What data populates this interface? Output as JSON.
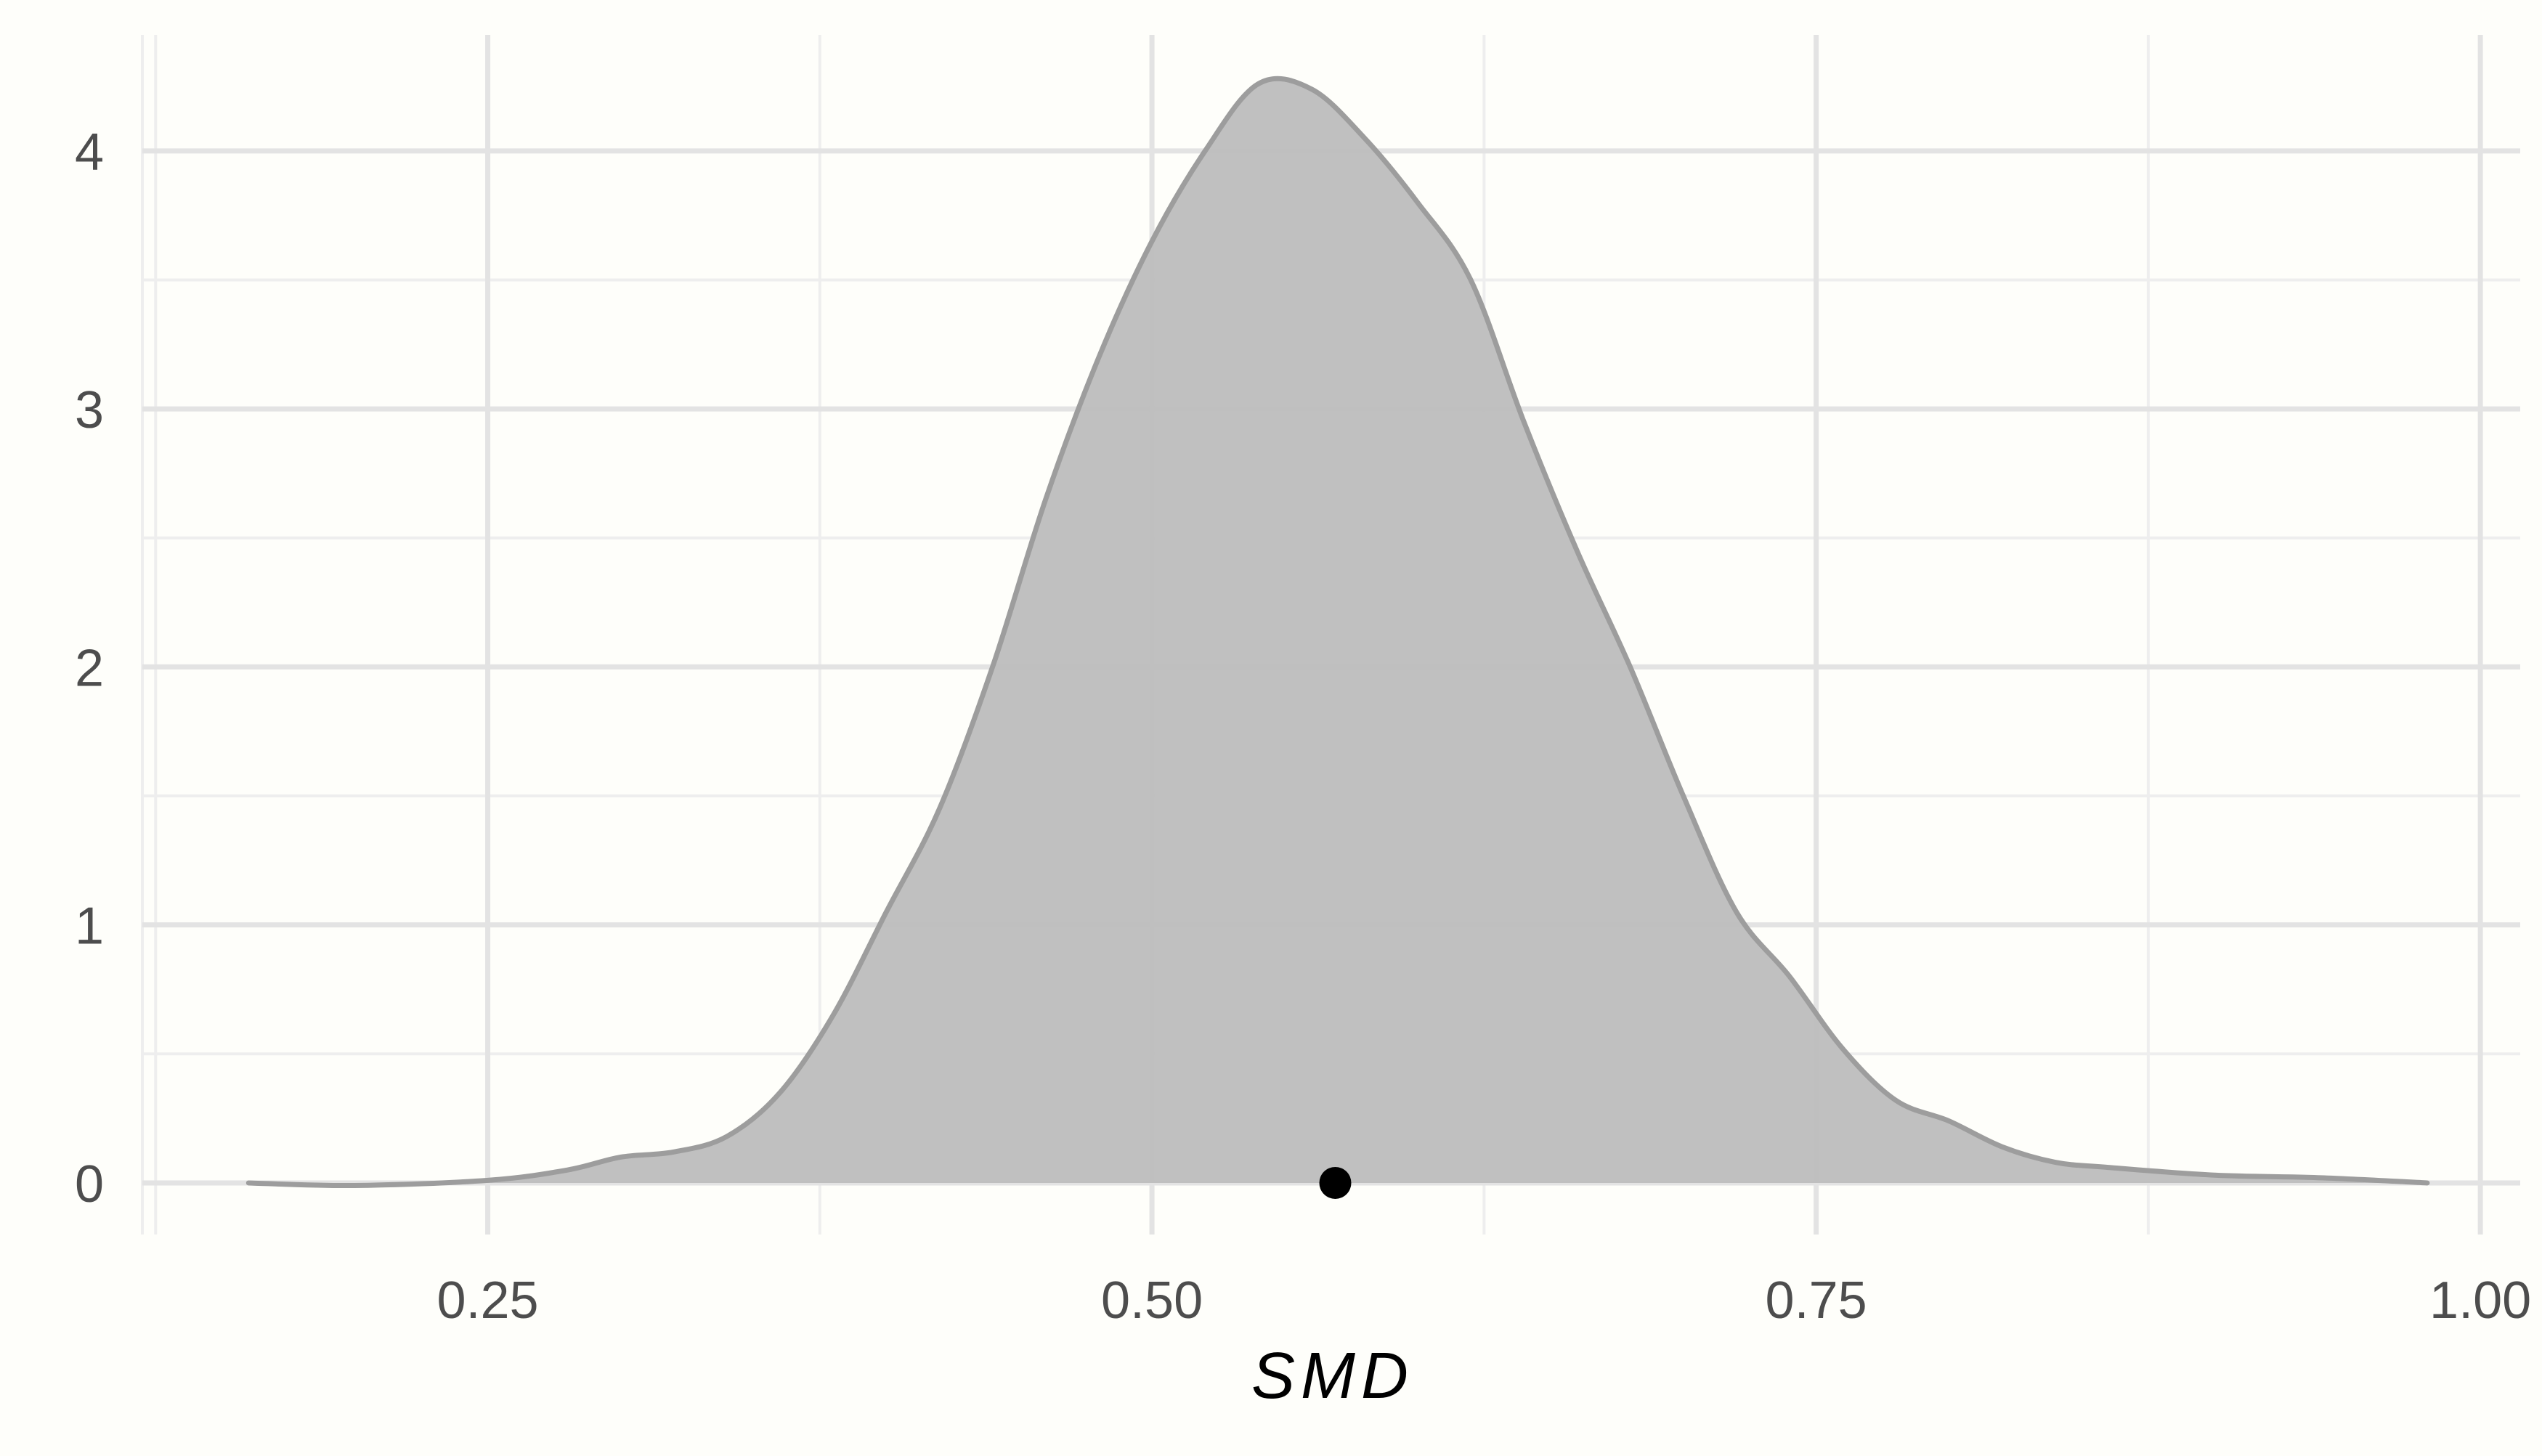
{
  "chart_data": {
    "type": "area",
    "title": "",
    "xlabel": "SMD",
    "ylabel": "",
    "xlim": [
      0.12,
      1.015
    ],
    "ylim": [
      -0.2,
      4.45
    ],
    "grid": true,
    "x_ticks": [
      {
        "value": 0.25,
        "label": "0.25"
      },
      {
        "value": 0.5,
        "label": "0.50"
      },
      {
        "value": 0.75,
        "label": "0.75"
      },
      {
        "value": 1.0,
        "label": "1.00"
      }
    ],
    "y_ticks": [
      {
        "value": 0,
        "label": "0"
      },
      {
        "value": 1,
        "label": "1"
      },
      {
        "value": 2,
        "label": "2"
      },
      {
        "value": 3,
        "label": "3"
      },
      {
        "value": 4,
        "label": "4"
      }
    ],
    "x_minor": [
      0.125,
      0.375,
      0.625,
      0.875
    ],
    "y_minor": [
      0.5,
      1.5,
      2.5,
      3.5
    ],
    "series": [
      {
        "x": [
          0.16,
          0.2,
          0.25,
          0.28,
          0.3,
          0.32,
          0.34,
          0.36,
          0.38,
          0.4,
          0.42,
          0.44,
          0.46,
          0.48,
          0.5,
          0.52,
          0.54,
          0.56,
          0.58,
          0.6,
          0.62,
          0.64,
          0.66,
          0.68,
          0.7,
          0.72,
          0.74,
          0.76,
          0.78,
          0.8,
          0.82,
          0.84,
          0.86,
          0.9,
          0.94,
          0.98
        ],
        "y": [
          0.0,
          -0.01,
          0.01,
          0.05,
          0.1,
          0.12,
          0.18,
          0.35,
          0.65,
          1.05,
          1.45,
          2.0,
          2.65,
          3.2,
          3.65,
          4.0,
          4.26,
          4.24,
          4.05,
          3.8,
          3.5,
          2.95,
          2.45,
          2.0,
          1.5,
          1.05,
          0.8,
          0.52,
          0.32,
          0.24,
          0.14,
          0.08,
          0.06,
          0.03,
          0.02,
          0.0
        ]
      }
    ],
    "point_estimate": {
      "x": 0.569,
      "y": 0
    },
    "colors": {
      "background": "#fefefa",
      "grid_major": "#e3e3e3",
      "grid_minor": "#eeeeee",
      "fill": "#bdbdbd",
      "line": "#9d9d9d",
      "point": "#000000",
      "tick_text": "#4d4d4d",
      "axis_title": "#000000"
    }
  }
}
